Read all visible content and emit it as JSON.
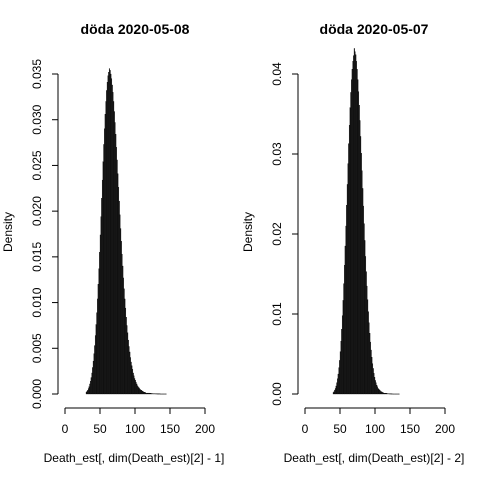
{
  "chart_data": [
    {
      "type": "histogram",
      "title": "döda 2020-05-08",
      "xlabel": "Death_est[, dim(Death_est)[2] - 1]",
      "ylabel": "Density",
      "xlim": [
        0,
        200
      ],
      "ylim": [
        0,
        0.035
      ],
      "x_ticks": [
        "0",
        "50",
        "100",
        "150",
        "200"
      ],
      "y_ticks": [
        "0.000",
        "0.005",
        "0.010",
        "0.015",
        "0.020",
        "0.025",
        "0.030",
        "0.035"
      ],
      "bin_width": 1,
      "bins_start": [
        30,
        31,
        32,
        33,
        34,
        35,
        36,
        37,
        38,
        39,
        40,
        41,
        42,
        43,
        44,
        45,
        46,
        47,
        48,
        49,
        50,
        51,
        52,
        53,
        54,
        55,
        56,
        57,
        58,
        59,
        60,
        61,
        62,
        63,
        64,
        65,
        66,
        67,
        68,
        69,
        70,
        71,
        72,
        73,
        74,
        75,
        76,
        77,
        78,
        79,
        80,
        81,
        82,
        83,
        84,
        85,
        86,
        87,
        88,
        89,
        90,
        91,
        92,
        93,
        94,
        95,
        96,
        97,
        98,
        99,
        100,
        101,
        102,
        103,
        104,
        105,
        106,
        107,
        108,
        109,
        110,
        111,
        112,
        113,
        114,
        115,
        116,
        117,
        118,
        119,
        120,
        121,
        122,
        123,
        124,
        125,
        126,
        127,
        128,
        129,
        130,
        131,
        132,
        133,
        134,
        135,
        136,
        137,
        138,
        139,
        140,
        141,
        142,
        143,
        144
      ],
      "density": [
        0.0002,
        0.0003,
        0.0004,
        0.0006,
        0.0008,
        0.0011,
        0.0014,
        0.0018,
        0.0023,
        0.0029,
        0.0036,
        0.0044,
        0.0053,
        0.0064,
        0.0076,
        0.0089,
        0.0104,
        0.012,
        0.0137,
        0.0155,
        0.0174,
        0.0194,
        0.0214,
        0.0234,
        0.0254,
        0.0273,
        0.029,
        0.0306,
        0.032,
        0.0332,
        0.0341,
        0.0348,
        0.0352,
        0.0356,
        0.0354,
        0.035,
        0.0345,
        0.0338,
        0.033,
        0.032,
        0.0309,
        0.0297,
        0.0284,
        0.027,
        0.0256,
        0.0241,
        0.0226,
        0.0211,
        0.0196,
        0.0181,
        0.0167,
        0.0153,
        0.014,
        0.0127,
        0.0115,
        0.0104,
        0.0094,
        0.0084,
        0.0075,
        0.0067,
        0.0059,
        0.0052,
        0.0046,
        0.004,
        0.0035,
        0.0031,
        0.0027,
        0.0023,
        0.002,
        0.0017,
        0.0015,
        0.0013,
        0.0011,
        0.0009,
        0.0008,
        0.0007,
        0.0006,
        0.0005,
        0.0004,
        0.0004,
        0.0003,
        0.0003,
        0.0002,
        0.0002,
        0.0002,
        0.0001,
        0.0001,
        0.0001,
        0.0001,
        0.0001,
        0.0001,
        8e-05,
        7e-05,
        6e-05,
        5e-05,
        5e-05,
        4e-05,
        4e-05,
        3e-05,
        3e-05,
        3e-05,
        2e-05,
        2e-05,
        2e-05,
        2e-05,
        2e-05,
        1e-05,
        1e-05,
        1e-05,
        1e-05,
        1e-05,
        1e-05,
        1e-05,
        1e-05,
        1e-05
      ],
      "bar_color": "#1a1a1a",
      "grid": false
    },
    {
      "type": "histogram",
      "title": "döda 2020-05-07",
      "xlabel": "Death_est[, dim(Death_est)[2] - 2]",
      "ylabel": "Density",
      "xlim": [
        0,
        200
      ],
      "ylim": [
        0,
        0.04
      ],
      "x_ticks": [
        "0",
        "50",
        "100",
        "150",
        "200"
      ],
      "y_ticks": [
        "0.00",
        "0.01",
        "0.02",
        "0.03",
        "0.04"
      ],
      "bin_width": 1,
      "bins_start": [
        40,
        41,
        42,
        43,
        44,
        45,
        46,
        47,
        48,
        49,
        50,
        51,
        52,
        53,
        54,
        55,
        56,
        57,
        58,
        59,
        60,
        61,
        62,
        63,
        64,
        65,
        66,
        67,
        68,
        69,
        70,
        71,
        72,
        73,
        74,
        75,
        76,
        77,
        78,
        79,
        80,
        81,
        82,
        83,
        84,
        85,
        86,
        87,
        88,
        89,
        90,
        91,
        92,
        93,
        94,
        95,
        96,
        97,
        98,
        99,
        100,
        101,
        102,
        103,
        104,
        105,
        106,
        107,
        108,
        109,
        110,
        111,
        112,
        113,
        114,
        115,
        116,
        117,
        118,
        119,
        120,
        121,
        122,
        123,
        124,
        125,
        126,
        127,
        128,
        129,
        130,
        131,
        132,
        133,
        134
      ],
      "density": [
        0.0002,
        0.0003,
        0.0005,
        0.0007,
        0.001,
        0.0014,
        0.0019,
        0.0025,
        0.0033,
        0.0042,
        0.0053,
        0.0066,
        0.0081,
        0.0098,
        0.0117,
        0.0138,
        0.0161,
        0.0185,
        0.021,
        0.0236,
        0.0262,
        0.0288,
        0.0313,
        0.0336,
        0.0358,
        0.0377,
        0.0393,
        0.0406,
        0.0416,
        0.0423,
        0.0432,
        0.0428,
        0.0424,
        0.0416,
        0.0406,
        0.0393,
        0.0378,
        0.0361,
        0.0342,
        0.0322,
        0.0301,
        0.0279,
        0.0257,
        0.0235,
        0.0213,
        0.0192,
        0.0172,
        0.0153,
        0.0135,
        0.0118,
        0.0103,
        0.0089,
        0.0076,
        0.0065,
        0.0055,
        0.0046,
        0.0038,
        0.0032,
        0.0026,
        0.0021,
        0.0017,
        0.0014,
        0.0011,
        0.0009,
        0.0007,
        0.0006,
        0.0005,
        0.0004,
        0.0003,
        0.0003,
        0.0002,
        0.0002,
        0.0001,
        0.0001,
        0.0001,
        0.0001,
        8e-05,
        6e-05,
        5e-05,
        4e-05,
        3e-05,
        3e-05,
        2e-05,
        2e-05,
        2e-05,
        1e-05,
        1e-05,
        1e-05,
        1e-05,
        1e-05,
        1e-05,
        1e-05,
        1e-05,
        1e-05,
        1e-05
      ],
      "bar_color": "#1a1a1a",
      "grid": false
    }
  ]
}
